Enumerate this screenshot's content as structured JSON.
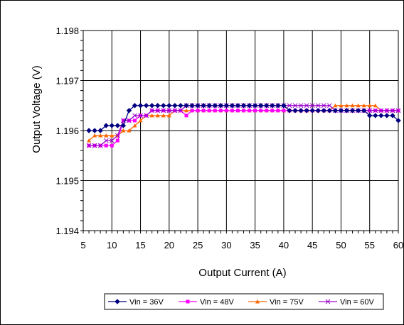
{
  "chart_data": {
    "type": "line",
    "title": "",
    "xlabel": "Output Current (A)",
    "ylabel": "Output Voltage (V)",
    "xlim": [
      5,
      60
    ],
    "ylim": [
      1.194,
      1.198
    ],
    "x_ticks": [
      "5",
      "10",
      "15",
      "20",
      "25",
      "30",
      "35",
      "40",
      "45",
      "50",
      "55",
      "60"
    ],
    "y_ticks": [
      "1.194",
      "1.195",
      "1.196",
      "1.197",
      "1.198"
    ],
    "grid": true,
    "legend_position": "bottom",
    "x": [
      6,
      7,
      8,
      9,
      10,
      11,
      12,
      13,
      14,
      15,
      16,
      17,
      18,
      19,
      20,
      21,
      22,
      23,
      24,
      25,
      26,
      27,
      28,
      29,
      30,
      31,
      32,
      33,
      34,
      35,
      36,
      37,
      38,
      39,
      40,
      41,
      42,
      43,
      44,
      45,
      46,
      47,
      48,
      49,
      50,
      51,
      52,
      53,
      54,
      55,
      56,
      57,
      58,
      59,
      60
    ],
    "series": [
      {
        "name": "Vin = 36V",
        "color": "#000080",
        "marker": "diamond",
        "values": [
          1.196,
          1.196,
          1.196,
          1.1961,
          1.1961,
          1.1961,
          1.1961,
          1.1964,
          1.1965,
          1.1965,
          1.1965,
          1.1965,
          1.1965,
          1.1965,
          1.1965,
          1.1965,
          1.1965,
          1.1965,
          1.1965,
          1.1965,
          1.1965,
          1.1965,
          1.1965,
          1.1965,
          1.1965,
          1.1965,
          1.1965,
          1.1965,
          1.1965,
          1.1965,
          1.1965,
          1.1965,
          1.1965,
          1.1965,
          1.1965,
          1.1964,
          1.1964,
          1.1964,
          1.1964,
          1.1964,
          1.1964,
          1.1964,
          1.1964,
          1.1964,
          1.1964,
          1.1964,
          1.1964,
          1.1964,
          1.1964,
          1.1963,
          1.1963,
          1.1963,
          1.1963,
          1.1963,
          1.1962
        ]
      },
      {
        "name": "Vin = 48V",
        "color": "#ff00ff",
        "marker": "square",
        "values": [
          1.1957,
          1.1957,
          1.1957,
          1.1957,
          1.1957,
          1.1958,
          1.1962,
          1.1962,
          1.1962,
          1.1963,
          1.1963,
          1.1964,
          1.1964,
          1.1964,
          1.1964,
          1.1964,
          1.1964,
          1.1963,
          1.1964,
          1.1964,
          1.1964,
          1.1964,
          1.1964,
          1.1964,
          1.1964,
          1.1964,
          1.1964,
          1.1964,
          1.1964,
          1.1964,
          1.1964,
          1.1964,
          1.1964,
          1.1964,
          1.1964,
          1.1964,
          1.1964,
          1.1964,
          1.1964,
          1.1964,
          1.1964,
          1.1964,
          1.1964,
          1.1964,
          1.1964,
          1.1964,
          1.1964,
          1.1964,
          1.1964,
          1.1964,
          1.1964,
          1.1964,
          1.1964,
          1.1964,
          1.1964
        ]
      },
      {
        "name": "Vin = 75V",
        "color": "#ff6600",
        "marker": "triangle",
        "values": [
          1.1958,
          1.1959,
          1.1959,
          1.1959,
          1.1959,
          1.1959,
          1.196,
          1.196,
          1.1961,
          1.1962,
          1.1963,
          1.1963,
          1.1963,
          1.1963,
          1.1963,
          1.1964,
          1.1964,
          1.1964,
          1.1964,
          1.1964,
          1.1964,
          1.1964,
          1.1964,
          1.1964,
          1.1964,
          1.1964,
          1.1964,
          1.1964,
          1.1964,
          1.1964,
          1.1964,
          1.1964,
          1.1964,
          1.1964,
          1.1964,
          1.1964,
          1.1964,
          1.1964,
          1.1964,
          1.1964,
          1.1964,
          1.1964,
          1.1964,
          1.1965,
          1.1965,
          1.1965,
          1.1965,
          1.1965,
          1.1965,
          1.1965,
          1.1965,
          1.1964,
          1.1964,
          1.1964,
          1.1964
        ]
      },
      {
        "name": "Vin = 60V",
        "color": "#9900cc",
        "marker": "x",
        "values": [
          1.1957,
          1.1957,
          1.1957,
          1.1958,
          1.1958,
          1.1959,
          1.1962,
          1.1962,
          1.1963,
          1.1963,
          1.1963,
          1.1964,
          1.1964,
          1.1964,
          1.1964,
          1.1964,
          1.1964,
          1.1965,
          1.1965,
          1.1965,
          1.1965,
          1.1965,
          1.1965,
          1.1965,
          1.1965,
          1.1965,
          1.1965,
          1.1965,
          1.1965,
          1.1965,
          1.1965,
          1.1965,
          1.1965,
          1.1965,
          1.1965,
          1.1965,
          1.1965,
          1.1965,
          1.1965,
          1.1965,
          1.1965,
          1.1965,
          1.1965,
          1.1964,
          1.1964,
          1.1964,
          1.1964,
          1.1964,
          1.1964,
          1.1964,
          1.1964,
          1.1964,
          1.1964,
          1.1964,
          1.1964
        ]
      }
    ]
  }
}
